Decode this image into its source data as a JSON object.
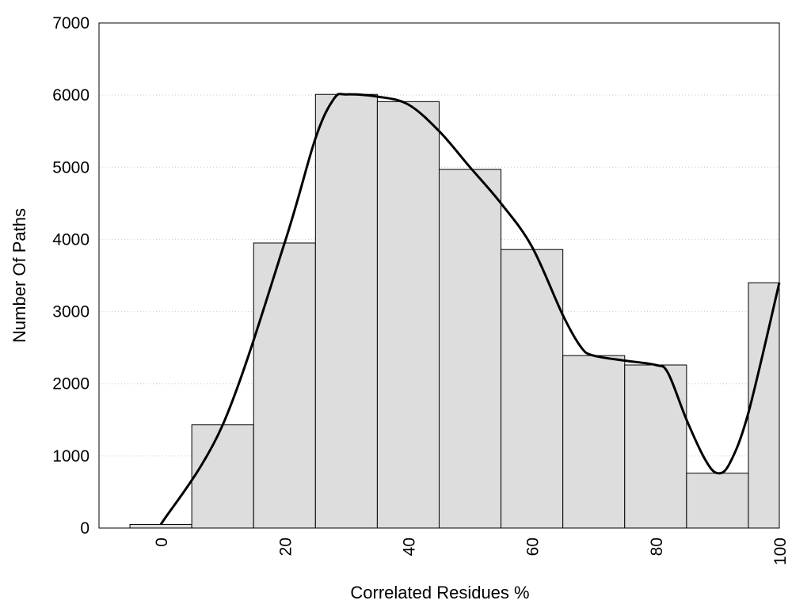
{
  "chart_data": {
    "type": "bar",
    "xlabel": "Correlated Residues %",
    "ylabel": "Number Of Paths",
    "xlim": [
      -10,
      100
    ],
    "ylim": [
      0,
      7000
    ],
    "bin_width": 10,
    "categories": [
      "0",
      "10",
      "20",
      "30",
      "40",
      "50",
      "60",
      "70",
      "80",
      "90",
      "100"
    ],
    "values": [
      50,
      1430,
      3950,
      6010,
      5910,
      4970,
      3860,
      2390,
      2260,
      760,
      3400
    ],
    "x_ticks": [
      "0",
      "20",
      "40",
      "60",
      "80",
      "100"
    ],
    "y_ticks": [
      "0",
      "1000",
      "2000",
      "3000",
      "4000",
      "5000",
      "6000",
      "7000"
    ],
    "curve": {
      "x": [
        0,
        10,
        20,
        25,
        28,
        30,
        35,
        40,
        45,
        50,
        55,
        60,
        65,
        68,
        70,
        75,
        80,
        82,
        85,
        88,
        90,
        92,
        95,
        100
      ],
      "y": [
        50,
        1430,
        3950,
        5400,
        5950,
        6010,
        5980,
        5870,
        5500,
        5000,
        4500,
        3900,
        2950,
        2500,
        2390,
        2320,
        2260,
        2150,
        1500,
        950,
        760,
        900,
        1600,
        3400
      ]
    },
    "bar_color": "#dddddd",
    "bar_edge_color": "#000000",
    "curve_color": "#000000",
    "grid": true,
    "grid_style": "horizontal dotted"
  }
}
